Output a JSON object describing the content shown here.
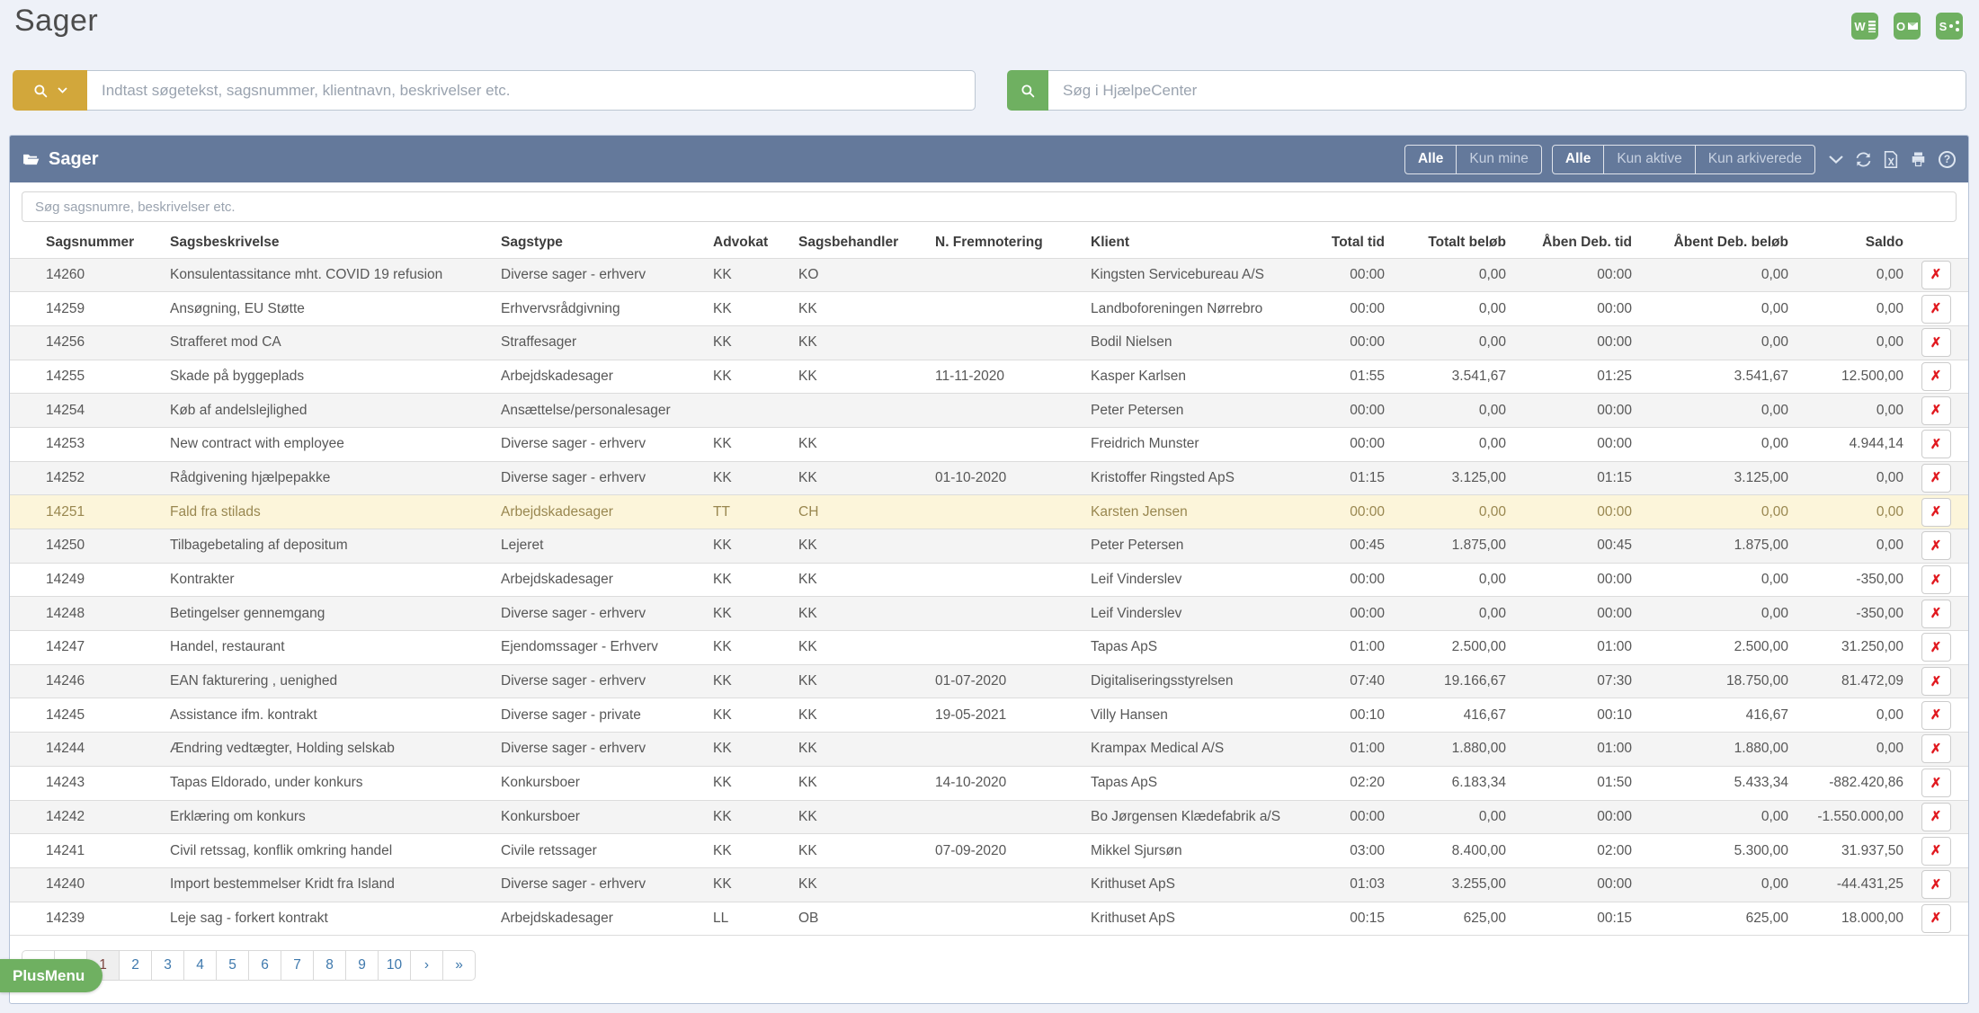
{
  "page": {
    "title": "Sager"
  },
  "colors": {
    "background": "#eef1f8",
    "gold_button": "#d2a73b",
    "green_accent": "#6fb061",
    "panel_header": "#64799b",
    "highlight_row": "#fcf5da",
    "link_blue": "#3f79ad",
    "delete_red": "#e1191f"
  },
  "office_icons": [
    {
      "id": "word",
      "letter": "W"
    },
    {
      "id": "outlook",
      "letter": "O"
    },
    {
      "id": "sharepoint",
      "letter": "S"
    }
  ],
  "search": {
    "main_placeholder": "Indtast søgetekst, sagsnummer, klientnavn, beskrivelser etc.",
    "help_placeholder": "Søg i HjælpeCenter"
  },
  "icons": {
    "delete_glyph": "✗",
    "help_glyph": "?",
    "header_icons": [
      "chevron-down",
      "refresh",
      "excel-export",
      "print",
      "help"
    ]
  },
  "panel": {
    "title": "Sager",
    "filters": {
      "group1": [
        {
          "label": "Alle",
          "active": true
        },
        {
          "label": "Kun mine",
          "active": false
        }
      ],
      "group2": [
        {
          "label": "Alle",
          "active": true
        },
        {
          "label": "Kun aktive",
          "active": false
        },
        {
          "label": "Kun arkiverede",
          "active": false
        }
      ]
    },
    "search_placeholder": "Søg sagsnumre, beskrivelser etc.",
    "table": {
      "columns": [
        {
          "key": "nr",
          "label": "Sagsnummer",
          "align": "left"
        },
        {
          "key": "desc",
          "label": "Sagsbeskrivelse",
          "align": "left"
        },
        {
          "key": "type",
          "label": "Sagstype",
          "align": "left"
        },
        {
          "key": "adv",
          "label": "Advokat",
          "align": "left"
        },
        {
          "key": "beh",
          "label": "Sagsbehandler",
          "align": "left"
        },
        {
          "key": "frem",
          "label": "N. Fremnotering",
          "align": "left"
        },
        {
          "key": "klient",
          "label": "Klient",
          "align": "left"
        },
        {
          "key": "tid",
          "label": "Total tid",
          "align": "right"
        },
        {
          "key": "belob",
          "label": "Totalt beløb",
          "align": "right"
        },
        {
          "key": "deb_tid",
          "label": "Åben Deb. tid",
          "align": "right"
        },
        {
          "key": "deb_belob",
          "label": "Åbent Deb. beløb",
          "align": "right"
        },
        {
          "key": "saldo",
          "label": "Saldo",
          "align": "right"
        }
      ],
      "rows": [
        {
          "nr": "14260",
          "desc": "Konsulentassitance mht. COVID 19 refusion",
          "type": "Diverse sager - erhverv",
          "adv": "KK",
          "beh": "KO",
          "frem": "",
          "klient": "Kingsten Servicebureau A/S",
          "tid": "00:00",
          "belob": "0,00",
          "deb_tid": "00:00",
          "deb_belob": "0,00",
          "saldo": "0,00",
          "hl": false
        },
        {
          "nr": "14259",
          "desc": "Ansøgning, EU Støtte",
          "type": "Erhvervsrådgivning",
          "adv": "KK",
          "beh": "KK",
          "frem": "",
          "klient": "Landboforeningen Nørrebro",
          "tid": "00:00",
          "belob": "0,00",
          "deb_tid": "00:00",
          "deb_belob": "0,00",
          "saldo": "0,00",
          "hl": false
        },
        {
          "nr": "14256",
          "desc": "Strafferet mod CA",
          "type": "Straffesager",
          "adv": "KK",
          "beh": "KK",
          "frem": "",
          "klient": "Bodil Nielsen",
          "tid": "00:00",
          "belob": "0,00",
          "deb_tid": "00:00",
          "deb_belob": "0,00",
          "saldo": "0,00",
          "hl": false
        },
        {
          "nr": "14255",
          "desc": "Skade på byggeplads",
          "type": "Arbejdskadesager",
          "adv": "KK",
          "beh": "KK",
          "frem": "11-11-2020",
          "klient": "Kasper Karlsen",
          "tid": "01:55",
          "belob": "3.541,67",
          "deb_tid": "01:25",
          "deb_belob": "3.541,67",
          "saldo": "12.500,00",
          "hl": false
        },
        {
          "nr": "14254",
          "desc": "Køb af andelslejlighed",
          "type": "Ansættelse/personalesager",
          "adv": "",
          "beh": "",
          "frem": "",
          "klient": "Peter Petersen",
          "tid": "00:00",
          "belob": "0,00",
          "deb_tid": "00:00",
          "deb_belob": "0,00",
          "saldo": "0,00",
          "hl": false
        },
        {
          "nr": "14253",
          "desc": "New contract with employee",
          "type": "Diverse sager - erhverv",
          "adv": "KK",
          "beh": "KK",
          "frem": "",
          "klient": "Freidrich Munster",
          "tid": "00:00",
          "belob": "0,00",
          "deb_tid": "00:00",
          "deb_belob": "0,00",
          "saldo": "4.944,14",
          "hl": false
        },
        {
          "nr": "14252",
          "desc": "Rådgivening hjælpepakke",
          "type": "Diverse sager - erhverv",
          "adv": "KK",
          "beh": "KK",
          "frem": "01-10-2020",
          "klient": "Kristoffer Ringsted ApS",
          "tid": "01:15",
          "belob": "3.125,00",
          "deb_tid": "01:15",
          "deb_belob": "3.125,00",
          "saldo": "0,00",
          "hl": false
        },
        {
          "nr": "14251",
          "desc": "Fald fra stilads",
          "type": "Arbejdskadesager",
          "adv": "TT",
          "beh": "CH",
          "frem": "",
          "klient": "Karsten Jensen",
          "tid": "00:00",
          "belob": "0,00",
          "deb_tid": "00:00",
          "deb_belob": "0,00",
          "saldo": "0,00",
          "hl": true
        },
        {
          "nr": "14250",
          "desc": "Tilbagebetaling af depositum",
          "type": "Lejeret",
          "adv": "KK",
          "beh": "KK",
          "frem": "",
          "klient": "Peter Petersen",
          "tid": "00:45",
          "belob": "1.875,00",
          "deb_tid": "00:45",
          "deb_belob": "1.875,00",
          "saldo": "0,00",
          "hl": false
        },
        {
          "nr": "14249",
          "desc": "Kontrakter",
          "type": "Arbejdskadesager",
          "adv": "KK",
          "beh": "KK",
          "frem": "",
          "klient": "Leif Vinderslev",
          "tid": "00:00",
          "belob": "0,00",
          "deb_tid": "00:00",
          "deb_belob": "0,00",
          "saldo": "-350,00",
          "hl": false
        },
        {
          "nr": "14248",
          "desc": "Betingelser gennemgang",
          "type": "Diverse sager - erhverv",
          "adv": "KK",
          "beh": "KK",
          "frem": "",
          "klient": "Leif Vinderslev",
          "tid": "00:00",
          "belob": "0,00",
          "deb_tid": "00:00",
          "deb_belob": "0,00",
          "saldo": "-350,00",
          "hl": false
        },
        {
          "nr": "14247",
          "desc": "Handel, restaurant",
          "type": "Ejendomssager - Erhverv",
          "adv": "KK",
          "beh": "KK",
          "frem": "",
          "klient": "Tapas ApS",
          "tid": "01:00",
          "belob": "2.500,00",
          "deb_tid": "01:00",
          "deb_belob": "2.500,00",
          "saldo": "31.250,00",
          "hl": false
        },
        {
          "nr": "14246",
          "desc": "EAN fakturering , uenighed",
          "type": "Diverse sager - erhverv",
          "adv": "KK",
          "beh": "KK",
          "frem": "01-07-2020",
          "klient": "Digitaliseringsstyrelsen",
          "tid": "07:40",
          "belob": "19.166,67",
          "deb_tid": "07:30",
          "deb_belob": "18.750,00",
          "saldo": "81.472,09",
          "hl": false
        },
        {
          "nr": "14245",
          "desc": "Assistance ifm. kontrakt",
          "type": "Diverse sager - private",
          "adv": "KK",
          "beh": "KK",
          "frem": "19-05-2021",
          "klient": "Villy Hansen",
          "tid": "00:10",
          "belob": "416,67",
          "deb_tid": "00:10",
          "deb_belob": "416,67",
          "saldo": "0,00",
          "hl": false
        },
        {
          "nr": "14244",
          "desc": "Ændring vedtægter, Holding selskab",
          "type": "Diverse sager - erhverv",
          "adv": "KK",
          "beh": "KK",
          "frem": "",
          "klient": "Krampax Medical A/S",
          "tid": "01:00",
          "belob": "1.880,00",
          "deb_tid": "01:00",
          "deb_belob": "1.880,00",
          "saldo": "0,00",
          "hl": false
        },
        {
          "nr": "14243",
          "desc": "Tapas Eldorado, under konkurs",
          "type": "Konkursboer",
          "adv": "KK",
          "beh": "KK",
          "frem": "14-10-2020",
          "klient": "Tapas ApS",
          "tid": "02:20",
          "belob": "6.183,34",
          "deb_tid": "01:50",
          "deb_belob": "5.433,34",
          "saldo": "-882.420,86",
          "hl": false
        },
        {
          "nr": "14242",
          "desc": "Erklæring om konkurs",
          "type": "Konkursboer",
          "adv": "KK",
          "beh": "KK",
          "frem": "",
          "klient": "Bo Jørgensen Klædefabrik a/S",
          "tid": "00:00",
          "belob": "0,00",
          "deb_tid": "00:00",
          "deb_belob": "0,00",
          "saldo": "-1.550.000,00",
          "hl": false
        },
        {
          "nr": "14241",
          "desc": "Civil retssag, konflik omkring handel",
          "type": "Civile retssager",
          "adv": "KK",
          "beh": "KK",
          "frem": "07-09-2020",
          "klient": "Mikkel Sjursøn",
          "tid": "03:00",
          "belob": "8.400,00",
          "deb_tid": "02:00",
          "deb_belob": "5.300,00",
          "saldo": "31.937,50",
          "hl": false
        },
        {
          "nr": "14240",
          "desc": "Import bestemmelser Kridt fra Island",
          "type": "Diverse sager - erhverv",
          "adv": "KK",
          "beh": "KK",
          "frem": "",
          "klient": "Krithuset ApS",
          "tid": "01:03",
          "belob": "3.255,00",
          "deb_tid": "00:00",
          "deb_belob": "0,00",
          "saldo": "-44.431,25",
          "hl": false
        },
        {
          "nr": "14239",
          "desc": "Leje sag - forkert kontrakt",
          "type": "Arbejdskadesager",
          "adv": "LL",
          "beh": "OB",
          "frem": "",
          "klient": "Krithuset ApS",
          "tid": "00:15",
          "belob": "625,00",
          "deb_tid": "00:15",
          "deb_belob": "625,00",
          "saldo": "18.000,00",
          "hl": false
        }
      ]
    },
    "pagination": {
      "items": [
        {
          "label": "«",
          "name": "first-page-button",
          "active": false
        },
        {
          "label": "‹",
          "name": "prev-page-button",
          "active": false
        },
        {
          "label": "1",
          "name": "page-1-button",
          "active": true
        },
        {
          "label": "2",
          "name": "page-2-button",
          "active": false
        },
        {
          "label": "3",
          "name": "page-3-button",
          "active": false
        },
        {
          "label": "4",
          "name": "page-4-button",
          "active": false
        },
        {
          "label": "5",
          "name": "page-5-button",
          "active": false
        },
        {
          "label": "6",
          "name": "page-6-button",
          "active": false
        },
        {
          "label": "7",
          "name": "page-7-button",
          "active": false
        },
        {
          "label": "8",
          "name": "page-8-button",
          "active": false
        },
        {
          "label": "9",
          "name": "page-9-button",
          "active": false
        },
        {
          "label": "10",
          "name": "page-10-button",
          "active": false
        },
        {
          "label": "›",
          "name": "next-page-button",
          "active": false
        },
        {
          "label": "»",
          "name": "last-page-button",
          "active": false
        }
      ]
    }
  },
  "plusmenu": {
    "label": "PlusMenu"
  }
}
